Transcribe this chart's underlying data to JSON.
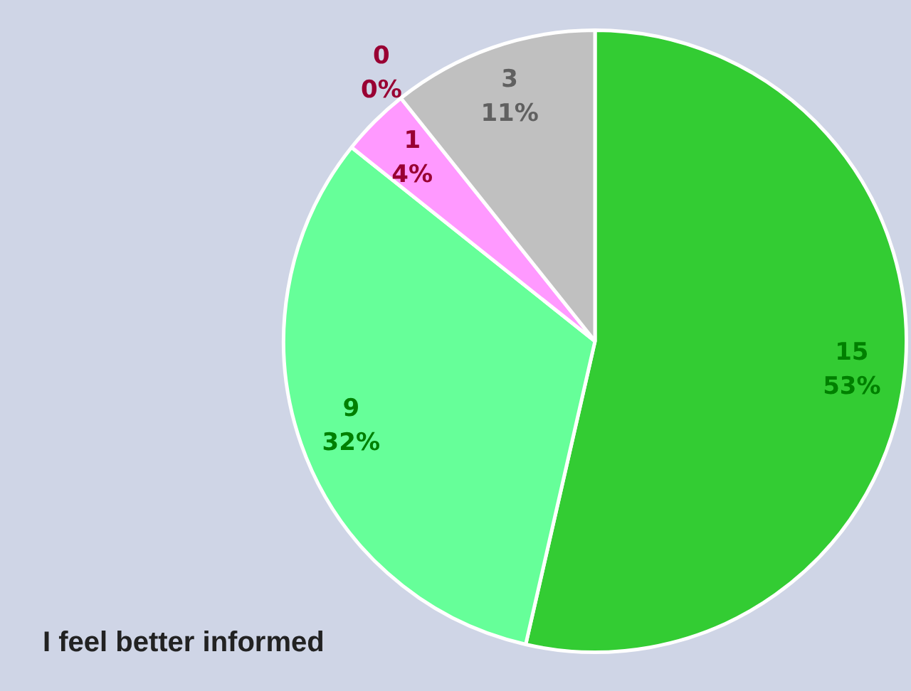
{
  "chart_data": {
    "type": "pie",
    "title": "I feel better informed",
    "categories": [
      null,
      null,
      null,
      null,
      null
    ],
    "values": [
      15,
      9,
      1,
      0,
      3
    ],
    "colors": [
      "#33cc33",
      "#66ff99",
      "#ff99ff",
      "#cc3366",
      "#c0c0c0"
    ],
    "value_labels": [
      "15\n53%",
      "9\n32%",
      "1\n4%",
      "0\n0%",
      "3\n11%"
    ],
    "legend": false
  }
}
